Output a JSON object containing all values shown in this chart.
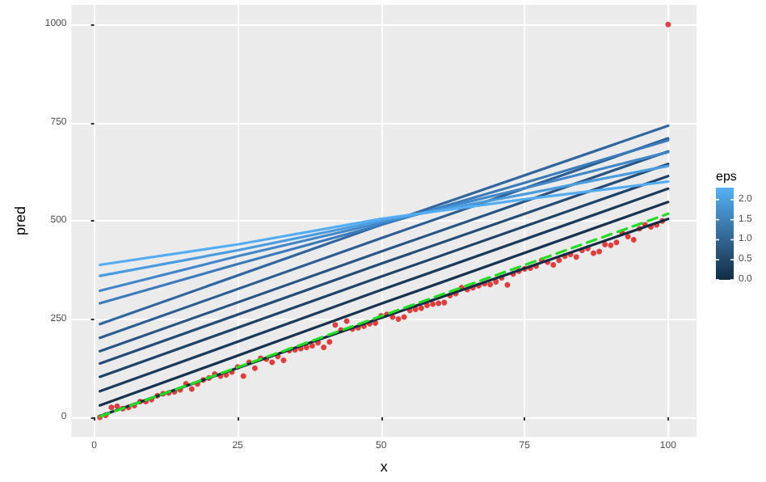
{
  "chart_data": {
    "type": "line",
    "xlabel": "x",
    "ylabel": "pred",
    "clabel": "eps",
    "xlim": [
      -3.95,
      104.95
    ],
    "xticks": [
      0,
      25,
      50,
      75,
      100
    ],
    "ylim": [
      -50,
      1050
    ],
    "yticks": [
      0,
      250,
      500,
      750,
      1000
    ],
    "clim": [
      0,
      2.3
    ],
    "cticks": [
      {
        "value": 0,
        "label": "0.0"
      },
      0.5,
      {
        "value": 1,
        "label": "1.0"
      },
      1.5,
      {
        "value": 2,
        "label": "2.0"
      }
    ],
    "colors": [
      "#132b43",
      "#56b1f7"
    ],
    "grid": true,
    "series": [
      {
        "color": "#132b43",
        "x": [
          1,
          50,
          100
        ],
        "values": [
          3,
          253,
          505
        ]
      },
      {
        "color": "#17334f",
        "x": [
          1,
          50,
          100
        ],
        "values": [
          30,
          289,
          548
        ]
      },
      {
        "color": "#1b3b5c",
        "x": [
          1,
          50,
          100
        ],
        "values": [
          66,
          324,
          582
        ]
      },
      {
        "color": "#1f4469",
        "x": [
          1,
          50,
          100
        ],
        "values": [
          103,
          358,
          614
        ]
      },
      {
        "color": "#234c77",
        "x": [
          1,
          50,
          100
        ],
        "values": [
          137,
          391,
          645
        ]
      },
      {
        "color": "#285585",
        "x": [
          1,
          50,
          100
        ],
        "values": [
          168,
          422,
          677
        ]
      },
      {
        "color": "#2c5e93",
        "x": [
          1,
          50,
          100
        ],
        "values": [
          202,
          456,
          710
        ]
      },
      {
        "color": "#3167a1",
        "x": [
          1,
          50,
          100
        ],
        "values": [
          237,
          490,
          742
        ]
      },
      {
        "color": "#3a7bbb",
        "x": [
          1,
          25,
          50,
          75,
          100
        ],
        "values": [
          290,
          390,
          490,
          597,
          705
        ]
      },
      {
        "color": "#4087c9",
        "x": [
          1,
          25,
          50,
          75,
          100
        ],
        "values": [
          322,
          410,
          495,
          583,
          675
        ]
      },
      {
        "color": "#4a9cdf",
        "x": [
          1,
          25,
          50,
          75,
          100
        ],
        "values": [
          360,
          425,
          500,
          568,
          640
        ]
      },
      {
        "color": "#54adf3",
        "x": [
          1,
          25,
          50,
          75,
          100
        ],
        "values": [
          388,
          440,
          505,
          555,
          600
        ]
      },
      {
        "type": "line",
        "color": "#22dd22",
        "line_style": "dashed",
        "x": [
          1,
          100
        ],
        "values": [
          2,
          518
        ]
      },
      {
        "type": "scatter",
        "color": "#dd1111",
        "x": [
          1,
          2,
          3,
          4,
          5,
          6,
          7,
          8,
          9,
          10,
          11,
          12,
          13,
          14,
          15,
          16,
          17,
          18,
          19,
          20,
          21,
          22,
          23,
          24,
          25,
          26,
          27,
          28,
          29,
          30,
          31,
          32,
          33,
          34,
          35,
          36,
          37,
          38,
          39,
          40,
          41,
          42,
          43,
          44,
          45,
          46,
          47,
          48,
          49,
          50,
          51,
          52,
          53,
          54,
          55,
          56,
          57,
          58,
          59,
          60,
          61,
          62,
          63,
          64,
          65,
          66,
          67,
          68,
          69,
          70,
          71,
          72,
          73,
          74,
          75,
          76,
          77,
          78,
          79,
          80,
          81,
          82,
          83,
          84,
          85,
          86,
          87,
          88,
          89,
          90,
          91,
          92,
          93,
          94,
          95,
          96,
          97,
          98,
          99,
          100
        ],
        "values": [
          0,
          5,
          25,
          28,
          22,
          25,
          30,
          40,
          40,
          45,
          55,
          60,
          62,
          65,
          70,
          85,
          72,
          85,
          95,
          100,
          110,
          105,
          108,
          115,
          128,
          105,
          140,
          125,
          150,
          148,
          140,
          155,
          145,
          170,
          172,
          175,
          178,
          182,
          190,
          178,
          192,
          235,
          222,
          245,
          225,
          228,
          232,
          238,
          240,
          258,
          262,
          255,
          250,
          255,
          272,
          275,
          278,
          285,
          288,
          290,
          292,
          310,
          315,
          330,
          325,
          330,
          335,
          340,
          338,
          345,
          355,
          337,
          365,
          372,
          378,
          380,
          385,
          400,
          395,
          388,
          400,
          410,
          415,
          408,
          425,
          430,
          418,
          422,
          440,
          438,
          445,
          470,
          460,
          452,
          480,
          490,
          485,
          490,
          500,
          1000
        ]
      }
    ]
  }
}
